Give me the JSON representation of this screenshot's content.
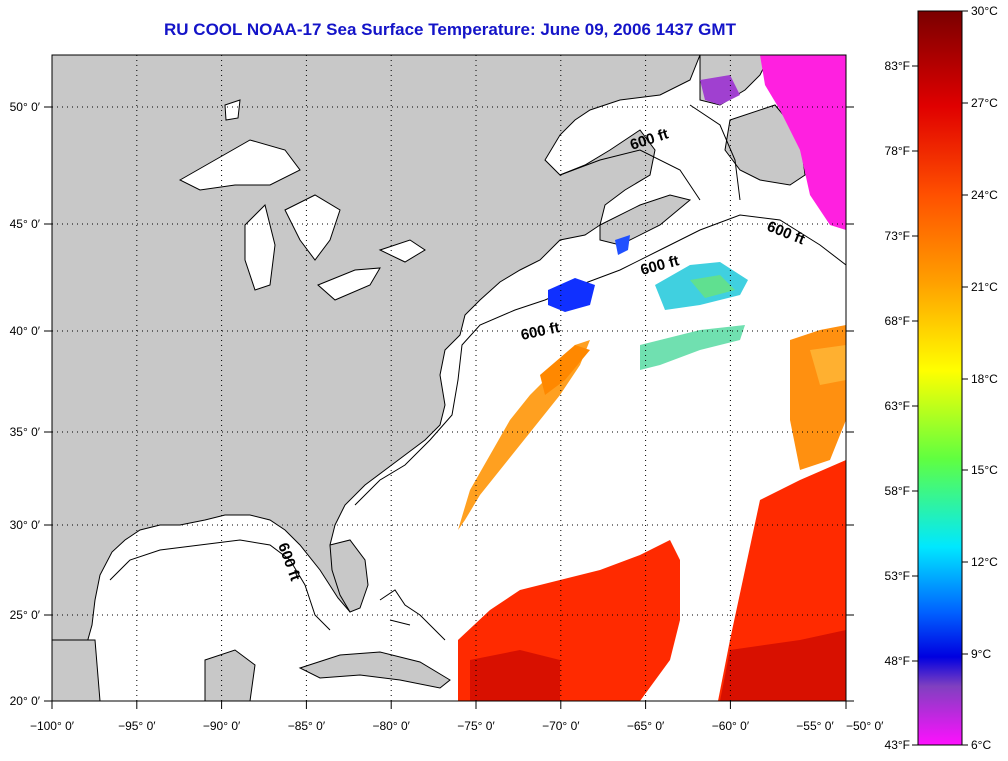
{
  "title": "RU COOL  NOAA-17  Sea Surface Temperature:  June 09, 2006 1437 GMT",
  "map": {
    "lon_range": [
      -100,
      -50
    ],
    "lat_range": [
      20,
      52
    ],
    "lon_ticks": [
      "−100° 0′",
      "−95° 0′",
      "−90° 0′",
      "−85° 0′",
      "−80° 0′",
      "−75° 0′",
      "−70° 0′",
      "−65° 0′",
      "−60° 0′",
      "−55° 0′",
      "−50° 0′"
    ],
    "lat_ticks": [
      "20° 0′",
      "25° 0′",
      "30° 0′",
      "35° 0′",
      "40° 0′",
      "45° 0′",
      "50° 0′"
    ],
    "depth_labels": [
      "600 ft",
      "600 ft",
      "600 ft",
      "600 ft",
      "600 ft"
    ],
    "colors": {
      "land": "#c8c8c8",
      "ocean": "#ffffff",
      "title": "#1414c8"
    }
  },
  "colorbar": {
    "celsius_labels": [
      "30°C",
      "27°C",
      "24°C",
      "21°C",
      "18°C",
      "15°C",
      "12°C",
      "9°C",
      "6°C"
    ],
    "fahrenheit_labels": [
      "83°F",
      "78°F",
      "73°F",
      "68°F",
      "63°F",
      "58°F",
      "53°F",
      "48°F",
      "43°F"
    ],
    "colors": [
      "#8b0000",
      "#ff0000",
      "#ff8c00",
      "#ffff00",
      "#7fff00",
      "#00ffff",
      "#0000ff",
      "#8000c0",
      "#ff00ff"
    ]
  }
}
